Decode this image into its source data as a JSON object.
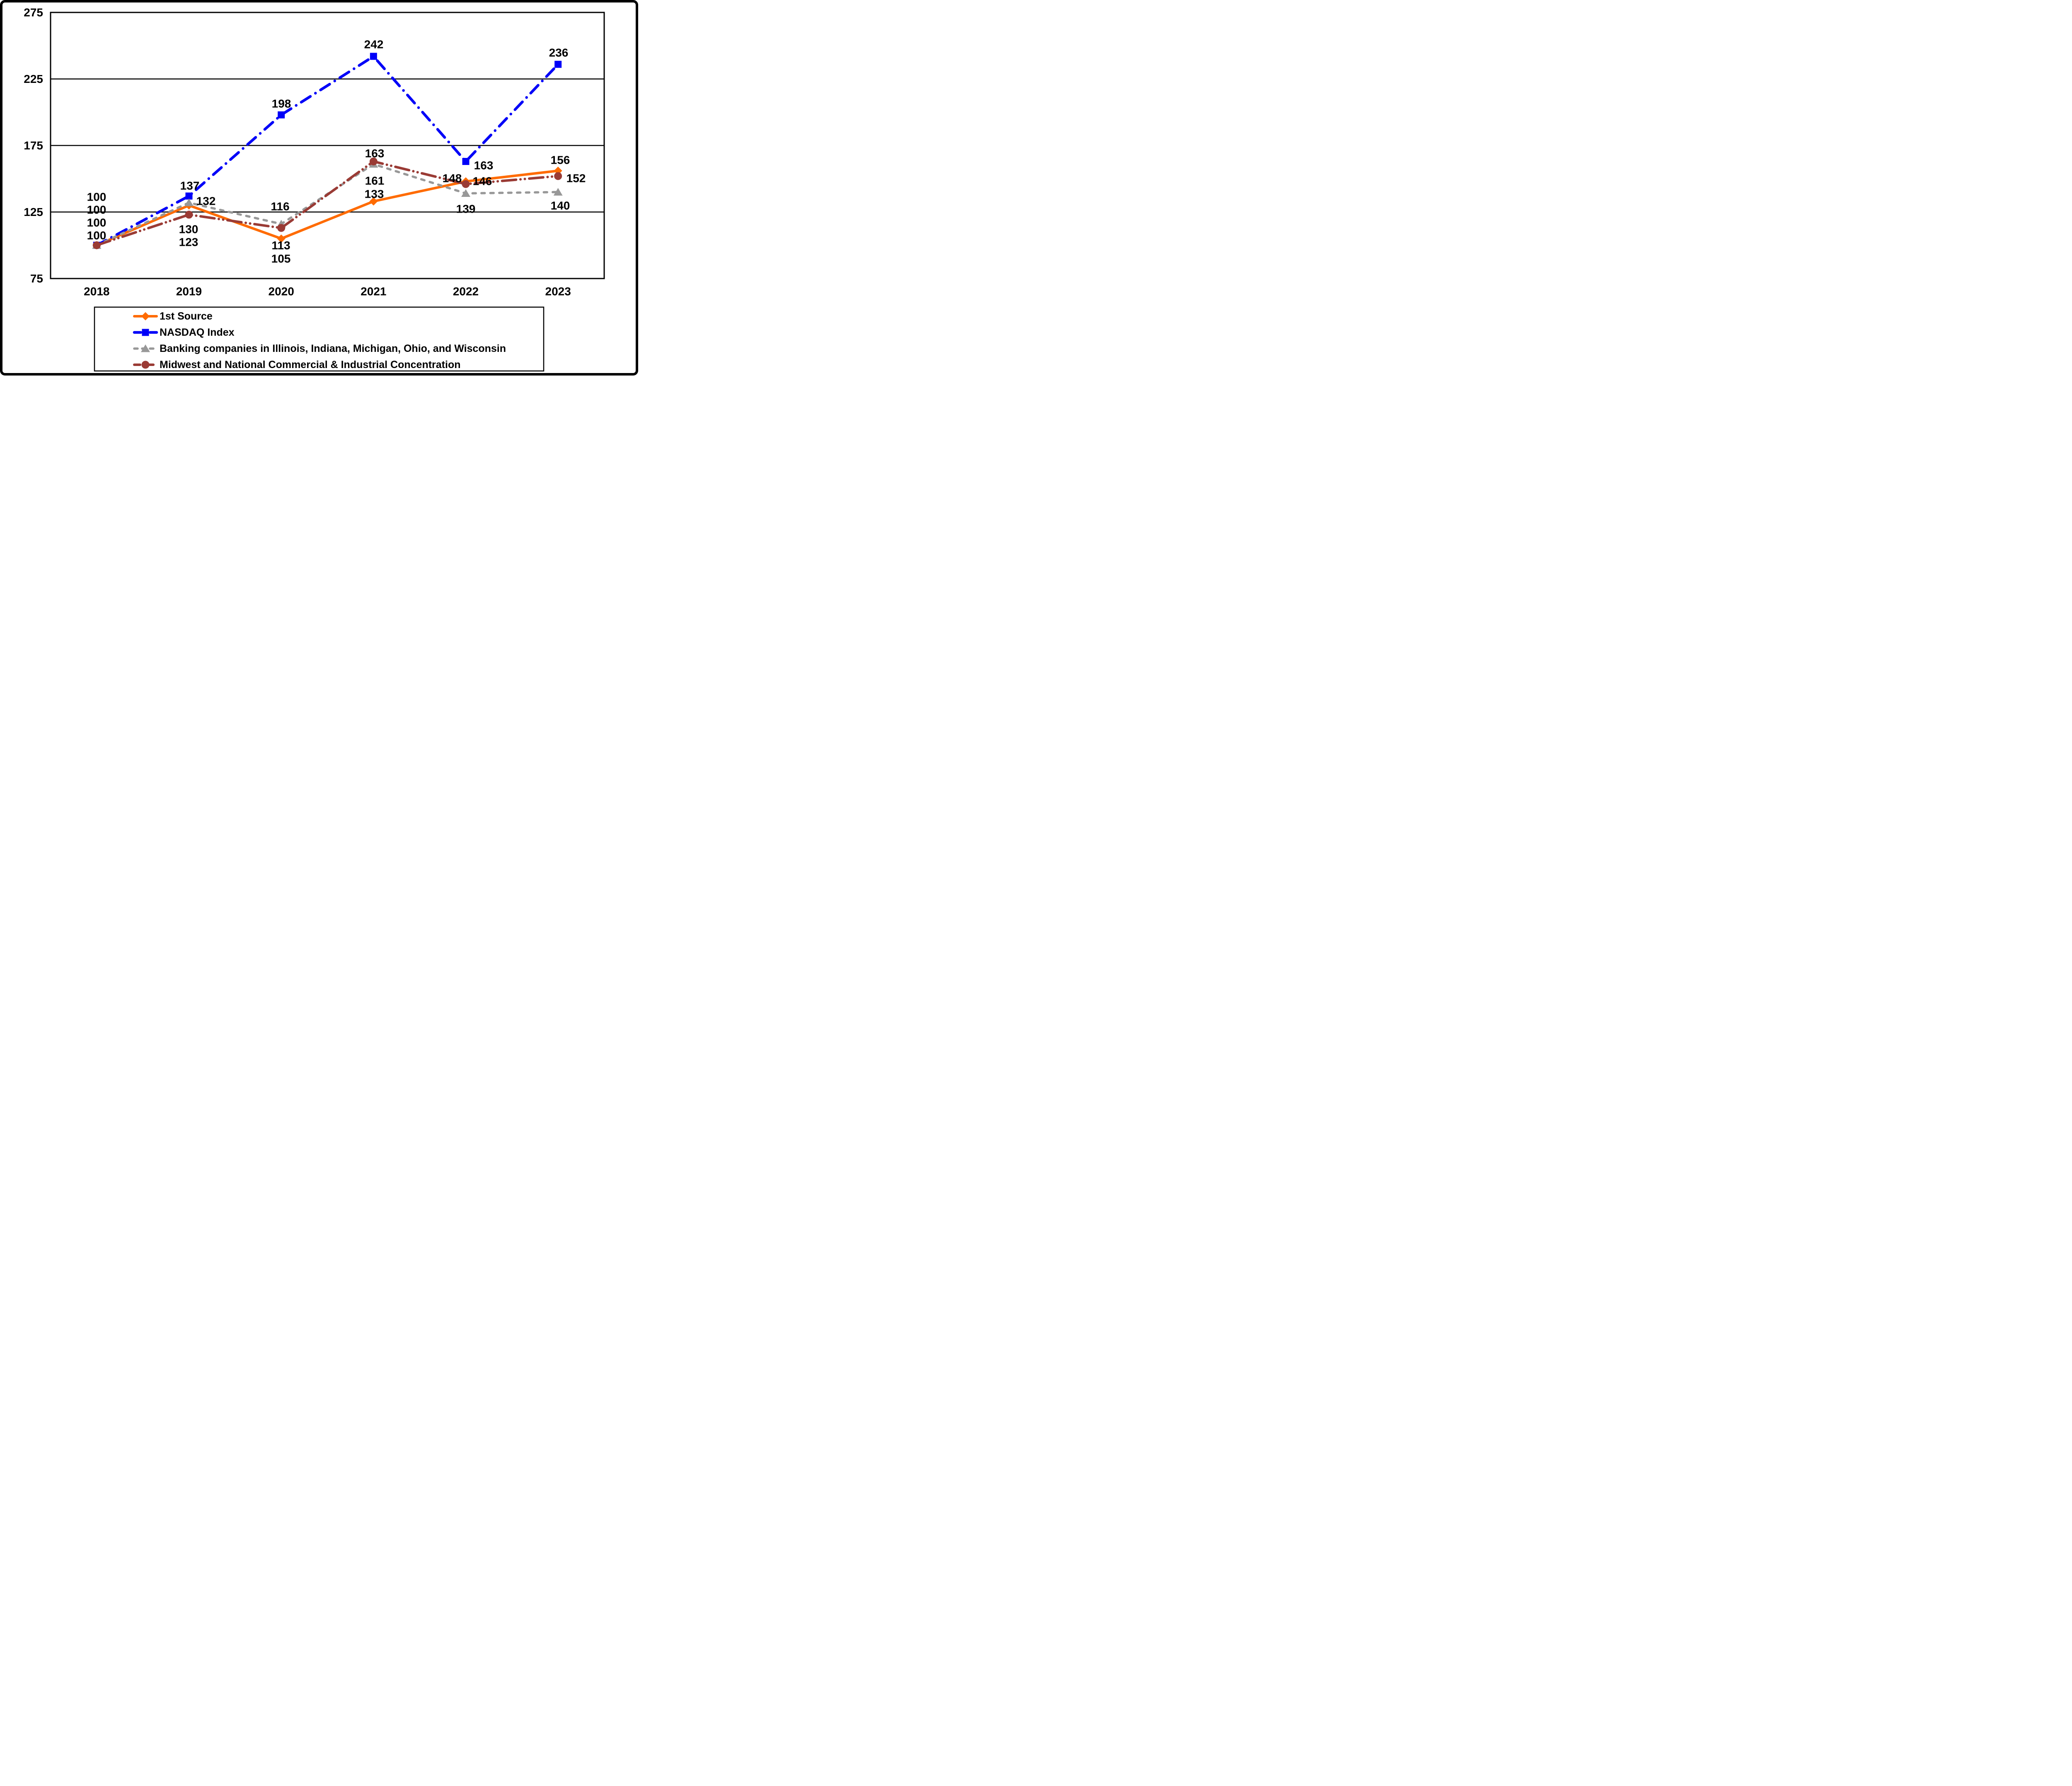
{
  "chart_data": {
    "type": "line",
    "title": "",
    "xlabel": "",
    "ylabel": "",
    "categories": [
      "2018",
      "2019",
      "2020",
      "2021",
      "2022",
      "2023"
    ],
    "series": [
      {
        "name": "1st Source",
        "color": "#FF6B00",
        "marker": "diamond",
        "line_style": "solid",
        "values": [
          100,
          130,
          105,
          133,
          148,
          156
        ]
      },
      {
        "name": "NASDAQ Index",
        "color": "#0000F8",
        "marker": "square",
        "line_style": "dash-dot",
        "values": [
          100,
          137,
          198,
          242,
          163,
          236
        ]
      },
      {
        "name": "Banking companies in Illinois, Indiana, Michigan, Ohio, and Wisconsin",
        "color": "#989898",
        "marker": "triangle",
        "line_style": "dashed",
        "values": [
          100,
          132,
          116,
          161,
          139,
          140
        ]
      },
      {
        "name": "Midwest and National Commercial & Industrial Concentration",
        "color": "#9A3B35",
        "marker": "circle",
        "line_style": "long-dash-dot-dot",
        "values": [
          100,
          123,
          113,
          163,
          146,
          152
        ]
      }
    ],
    "ylim": [
      75,
      275
    ],
    "y_ticks": [
      275,
      225,
      175,
      125,
      75
    ],
    "grid": "horizontal-only",
    "plot_border": true,
    "data_labels": true,
    "legend_position": "bottom-left-box",
    "axis_color": "#000000",
    "background_color": "#FFFFFF"
  }
}
